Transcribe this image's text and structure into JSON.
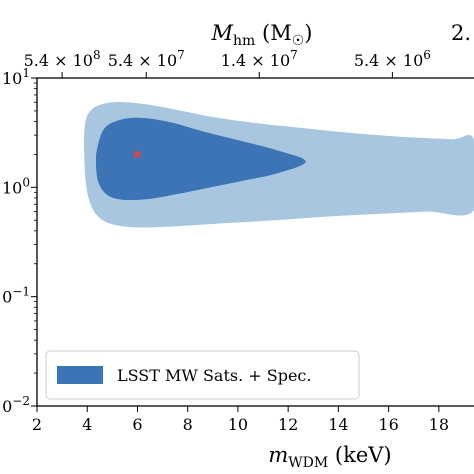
{
  "chart_data": {
    "type": "contour",
    "bottom_axis": {
      "label": "m",
      "label_sub": "WDM",
      "label_rest": " (keV)",
      "range": [
        2,
        19.4
      ],
      "ticks": [
        2,
        4,
        6,
        8,
        10,
        12,
        14,
        16,
        18
      ],
      "tick_labels": [
        "2",
        "4",
        "6",
        "8",
        "10",
        "12",
        "14",
        "16",
        "18"
      ]
    },
    "top_axis": {
      "label": "M",
      "label_sub": "hm",
      "label_rest": " (M",
      "label_sub2": "☉",
      "label_close": ")",
      "tick_positions_mwdm": [
        3.0,
        6.35,
        10.85,
        16.15
      ],
      "tick_labels": [
        {
          "base": "5.4 × 10",
          "exp": "8"
        },
        {
          "base": "5.4 × 10",
          "exp": "7"
        },
        {
          "base": "1.4 × 10",
          "exp": "7"
        },
        {
          "base": "5.4 × 10",
          "exp": "6"
        }
      ],
      "edge_label": "2."
    },
    "left_axis": {
      "scale": "log",
      "range": [
        0.01,
        10
      ],
      "major_ticks": [
        0.01,
        0.1,
        1,
        10
      ],
      "tick_labels": [
        {
          "base": "10",
          "exp": "−2"
        },
        {
          "base": "10",
          "exp": "−1"
        },
        {
          "base": "10",
          "exp": "0"
        },
        {
          "base": "10",
          "exp": "1"
        }
      ]
    },
    "regions": [
      {
        "name": "LSST MW Sats. + Spec.",
        "level": "outer (95%)",
        "color": "#a8c6e0",
        "outline": [
          [
            3.9,
            3.6
          ],
          [
            4.2,
            5.2
          ],
          [
            5.0,
            6.0
          ],
          [
            6.2,
            5.8
          ],
          [
            7.6,
            5.1
          ],
          [
            9.0,
            4.4
          ],
          [
            10.6,
            3.9
          ],
          [
            12.5,
            3.5
          ],
          [
            14.5,
            3.15
          ],
          [
            16.5,
            2.9
          ],
          [
            18.5,
            2.75
          ],
          [
            19.4,
            2.7
          ],
          [
            19.4,
            0.62
          ],
          [
            17.5,
            0.6
          ],
          [
            15.5,
            0.57
          ],
          [
            13.5,
            0.54
          ],
          [
            11.5,
            0.5
          ],
          [
            9.5,
            0.47
          ],
          [
            7.5,
            0.44
          ],
          [
            6.0,
            0.43
          ],
          [
            5.0,
            0.46
          ],
          [
            4.4,
            0.55
          ],
          [
            4.05,
            0.8
          ],
          [
            3.9,
            1.5
          ]
        ]
      },
      {
        "name": "LSST MW Sats. + Spec.",
        "level": "inner (68%)",
        "color": "#3c74b5",
        "outline": [
          [
            4.4,
            2.3
          ],
          [
            4.7,
            3.5
          ],
          [
            5.4,
            4.2
          ],
          [
            6.3,
            4.3
          ],
          [
            7.4,
            3.9
          ],
          [
            8.6,
            3.25
          ],
          [
            10.0,
            2.7
          ],
          [
            11.5,
            2.2
          ],
          [
            12.7,
            1.72
          ],
          [
            11.5,
            1.33
          ],
          [
            10.2,
            1.15
          ],
          [
            8.9,
            1.0
          ],
          [
            7.6,
            0.87
          ],
          [
            6.4,
            0.78
          ],
          [
            5.4,
            0.77
          ],
          [
            4.8,
            0.85
          ],
          [
            4.45,
            1.1
          ],
          [
            4.35,
            1.6
          ]
        ]
      }
    ],
    "best_fit": {
      "mWDM": 6.0,
      "y": 2.0,
      "color": "#e8413c",
      "marker": "star"
    },
    "legend": {
      "entries": [
        {
          "label": "LSST MW Sats. + Spec.",
          "color": "#3c74b5"
        }
      ],
      "placement": "lower-left"
    }
  }
}
